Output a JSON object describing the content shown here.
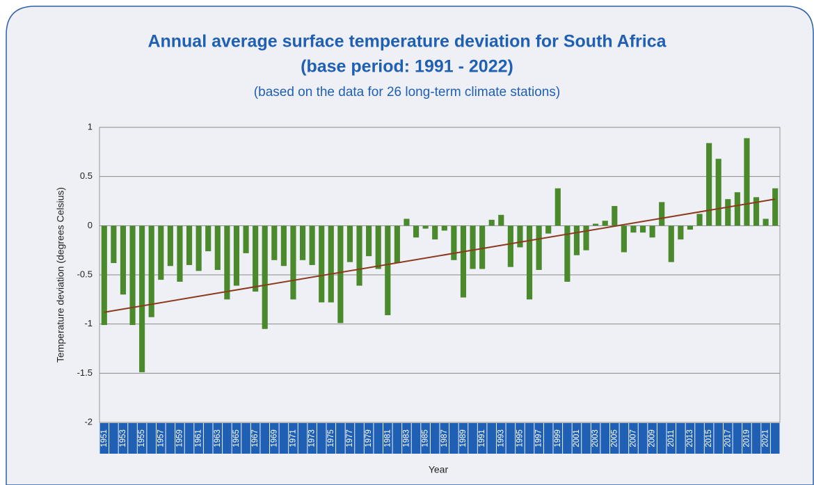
{
  "chart_data": {
    "type": "bar",
    "title": "Annual average surface temperature deviation for South Africa",
    "title_line2": "(base period: 1991 - 2022)",
    "subtitle": "(based on the data for 26 long-term climate stations)",
    "x_label": "Year",
    "y_label": "Temperature deviation (degrees Celsius)",
    "categories": [
      "1951",
      null,
      "1953",
      null,
      "1955",
      null,
      "1957",
      null,
      "1959",
      null,
      "1961",
      null,
      "1963",
      null,
      "1965",
      null,
      "1967",
      null,
      "1969",
      null,
      "1971",
      null,
      "1973",
      null,
      "1975",
      null,
      "1977",
      null,
      "1979",
      null,
      "1981",
      null,
      "1983",
      null,
      "1985",
      null,
      "1987",
      null,
      "1989",
      null,
      "1991",
      null,
      "1993",
      null,
      "1995",
      null,
      "1997",
      null,
      "1999",
      null,
      "2001",
      null,
      "2003",
      null,
      "2005",
      null,
      "2007",
      null,
      "2009",
      null,
      "2011",
      null,
      "2013",
      null,
      "2015",
      null,
      "2017",
      null,
      "2019",
      null,
      "2021",
      null
    ],
    "values": [
      -1.01,
      -0.38,
      -0.7,
      -1.01,
      -1.49,
      -0.93,
      -0.55,
      -0.41,
      -0.57,
      -0.4,
      -0.46,
      -0.26,
      -0.45,
      -0.75,
      -0.61,
      -0.28,
      -0.67,
      -1.05,
      -0.35,
      -0.41,
      -0.75,
      -0.35,
      -0.4,
      -0.78,
      -0.78,
      -0.99,
      -0.37,
      -0.61,
      -0.31,
      -0.44,
      -0.91,
      -0.38,
      0.07,
      -0.12,
      -0.03,
      -0.14,
      -0.05,
      -0.35,
      -0.73,
      -0.44,
      -0.44,
      0.06,
      0.11,
      -0.42,
      -0.22,
      -0.75,
      -0.45,
      -0.08,
      0.38,
      -0.57,
      -0.3,
      -0.25,
      0.02,
      0.05,
      0.2,
      -0.27,
      -0.07,
      -0.07,
      -0.12,
      0.24,
      -0.37,
      -0.14,
      -0.04,
      0.12,
      0.84,
      0.68,
      0.27,
      0.34,
      0.89,
      0.29,
      0.07,
      0.38
    ],
    "color": "#4a8a2c",
    "trend": [
      -0.88,
      0.27
    ],
    "trend_color": "#8b3a1e",
    "ylim": [
      -2,
      1
    ],
    "yticks": [
      -2,
      -1.5,
      -1,
      -0.5,
      0,
      0.5,
      1
    ],
    "grid": true
  }
}
